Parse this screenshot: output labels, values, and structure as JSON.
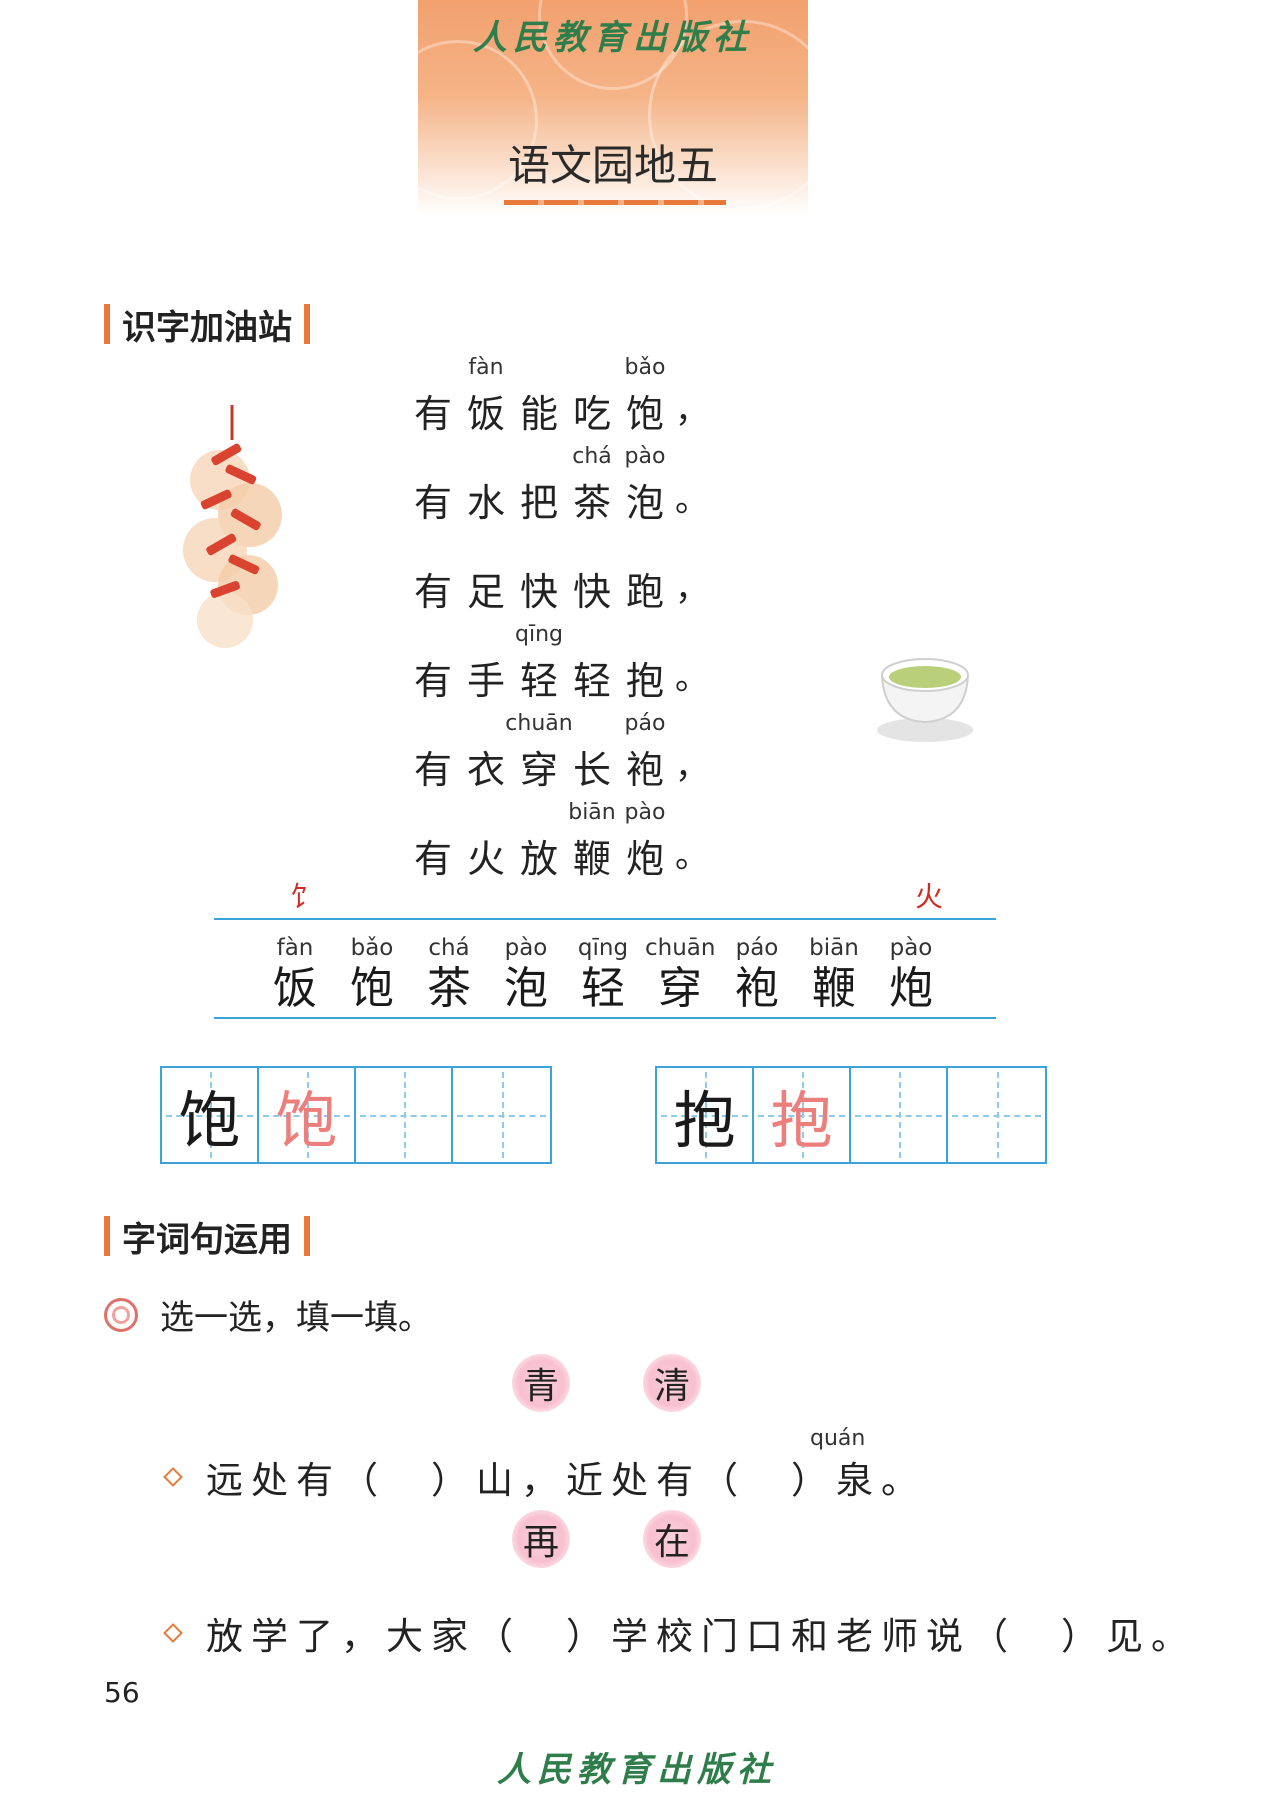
{
  "publisher": "人民教育出版社",
  "unit_title": "语文园地五",
  "section1": {
    "label": "识字加油站",
    "poem": [
      {
        "chars": [
          "有",
          "饭",
          "能",
          "吃",
          "饱"
        ],
        "pinyin": [
          "",
          "fàn",
          "",
          "",
          "bǎo"
        ],
        "punct": "，"
      },
      {
        "chars": [
          "有",
          "水",
          "把",
          "茶",
          "泡"
        ],
        "pinyin": [
          "",
          "",
          "",
          "chá",
          "pào"
        ],
        "punct": "。"
      },
      {
        "chars": [
          "有",
          "足",
          "快",
          "快",
          "跑"
        ],
        "pinyin": [
          "",
          "",
          "",
          "",
          ""
        ],
        "punct": "，"
      },
      {
        "chars": [
          "有",
          "手",
          "轻",
          "轻",
          "抱"
        ],
        "pinyin": [
          "",
          "",
          "qīng",
          "",
          ""
        ],
        "punct": "。"
      },
      {
        "chars": [
          "有",
          "衣",
          "穿",
          "长",
          "袍"
        ],
        "pinyin": [
          "",
          "",
          "chuān",
          "",
          "páo"
        ],
        "punct": "，"
      },
      {
        "chars": [
          "有",
          "火",
          "放",
          "鞭",
          "炮"
        ],
        "pinyin": [
          "",
          "",
          "",
          "biān",
          "pào"
        ],
        "punct": "。"
      }
    ],
    "radicals": [
      "饣",
      "火"
    ],
    "new_chars": [
      {
        "py": "fàn",
        "ch": "饭"
      },
      {
        "py": "bǎo",
        "ch": "饱"
      },
      {
        "py": "chá",
        "ch": "茶"
      },
      {
        "py": "pào",
        "ch": "泡"
      },
      {
        "py": "qīng",
        "ch": "轻"
      },
      {
        "py": "chuān",
        "ch": "穿"
      },
      {
        "py": "páo",
        "ch": "袍"
      },
      {
        "py": "biān",
        "ch": "鞭"
      },
      {
        "py": "pào",
        "ch": "炮"
      }
    ],
    "writing_grids": [
      {
        "model": "饱",
        "trace": "饱"
      },
      {
        "model": "抱",
        "trace": "抱"
      }
    ]
  },
  "section2": {
    "label": "字词句运用",
    "instruction": "选一选，填一填。",
    "exercise1": {
      "options": [
        "青",
        "清"
      ],
      "pinyin_quan": "quán",
      "sentence": "远处有（　）山，近处有（　）泉。"
    },
    "exercise2": {
      "options": [
        "再",
        "在"
      ],
      "sentence": "放学了，大家（　）学校门口和老师说（　）见。"
    }
  },
  "page_number": "56",
  "colors": {
    "accent_orange": "#e8793a",
    "grid_blue": "#3aa3d8",
    "trace_pink": "#ec7f7c",
    "radical_red": "#d02b1f",
    "logo_green": "#2f7d4a"
  }
}
